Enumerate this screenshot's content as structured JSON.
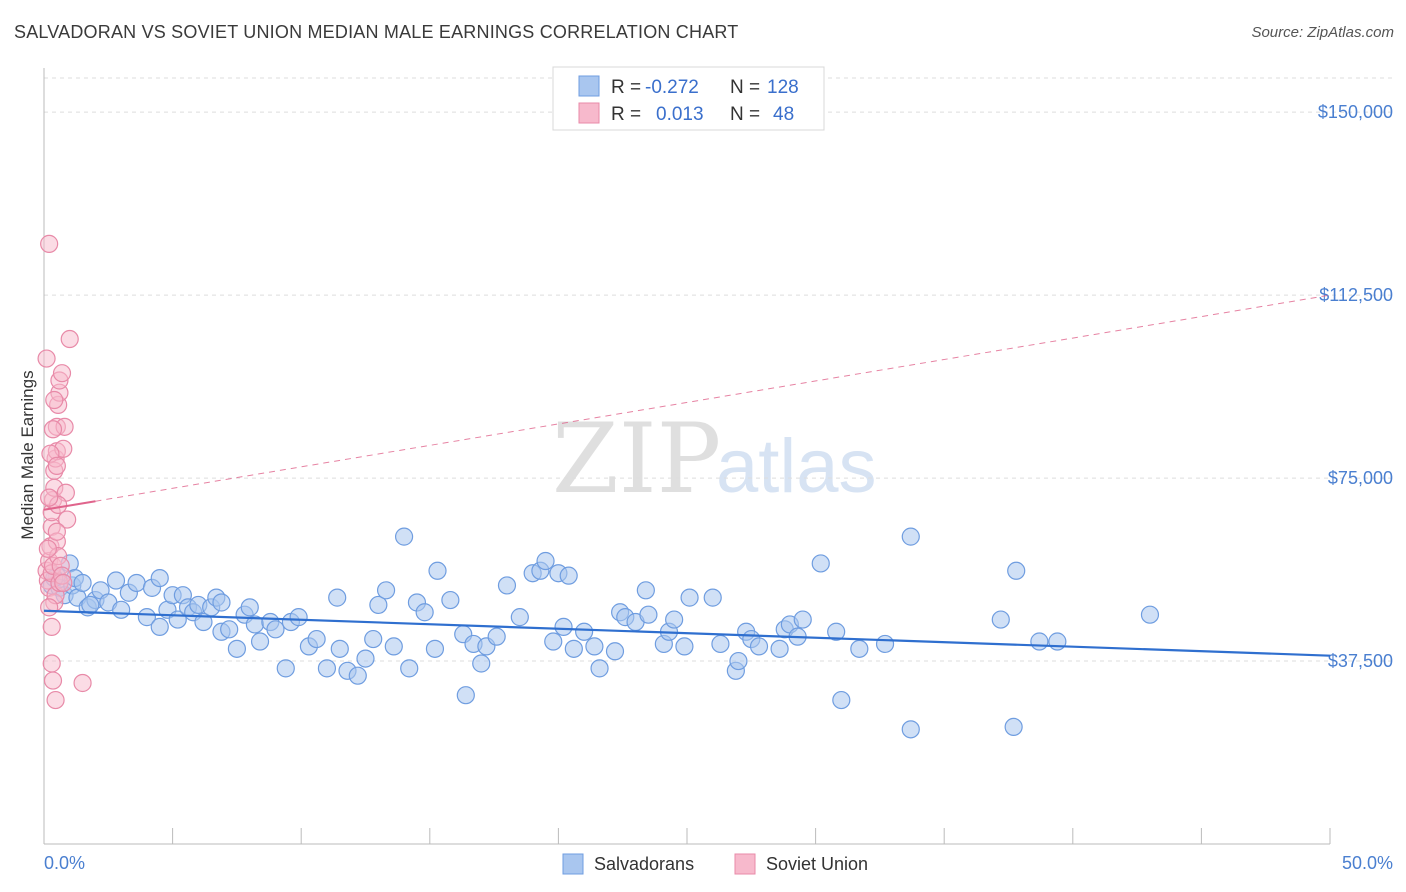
{
  "title": "SALVADORAN VS SOVIET UNION MEDIAN MALE EARNINGS CORRELATION CHART",
  "source": "Source: ZipAtlas.com",
  "watermark": {
    "part1": "ZIP",
    "part2": "atlas"
  },
  "colors": {
    "blue_fill": "#a9c6ef",
    "blue_stroke": "#6f9de0",
    "blue_line": "#2f6fcf",
    "pink_fill": "#f7b9cc",
    "pink_stroke": "#e88aa8",
    "pink_line": "#e0648c",
    "axis_text": "#4a7fd0",
    "grid": "#dddddd"
  },
  "legend": {
    "rows": [
      {
        "r_label": "R =",
        "r_value": "-0.272",
        "n_label": "N =",
        "n_value": "128"
      },
      {
        "r_label": "R =",
        "r_value": "0.013",
        "n_label": "N =",
        "n_value": "48"
      }
    ]
  },
  "bottom_legend": {
    "series1": "Salvadorans",
    "series2": "Soviet Union"
  },
  "chart_data": {
    "type": "scatter",
    "title": "SALVADORAN VS SOVIET UNION MEDIAN MALE EARNINGS CORRELATION CHART",
    "xlabel": "",
    "ylabel": "Median Male Earnings",
    "x_unit": "%",
    "xlim": [
      0,
      50
    ],
    "ylim": [
      0,
      157000
    ],
    "x_tick_labels": [
      "0.0%",
      "50.0%"
    ],
    "y_ticks": [
      37500,
      75000,
      112500,
      150000
    ],
    "y_tick_labels": [
      "$37,500",
      "$75,000",
      "$112,500",
      "$150,000"
    ],
    "grid": "horizontal dashed",
    "legend_position": "top-center",
    "series": [
      {
        "name": "Salvadorans",
        "r": -0.272,
        "n": 128,
        "trend": {
          "x": [
            0,
            50
          ],
          "y": [
            47800,
            38600
          ],
          "style": "solid"
        },
        "points": [
          [
            0.3,
            53000
          ],
          [
            0.5,
            55000
          ],
          [
            0.6,
            52500
          ],
          [
            0.8,
            51000
          ],
          [
            1.0,
            57500
          ],
          [
            1.1,
            53000
          ],
          [
            1.2,
            54500
          ],
          [
            1.3,
            50500
          ],
          [
            1.5,
            53500
          ],
          [
            1.7,
            48500
          ],
          [
            2.0,
            50000
          ],
          [
            2.2,
            52000
          ],
          [
            2.5,
            49500
          ],
          [
            2.8,
            54000
          ],
          [
            3.0,
            48000
          ],
          [
            3.3,
            51500
          ],
          [
            3.6,
            53500
          ],
          [
            4.0,
            46500
          ],
          [
            4.2,
            52500
          ],
          [
            4.5,
            54500
          ],
          [
            4.5,
            44500
          ],
          [
            4.8,
            48000
          ],
          [
            5.0,
            51000
          ],
          [
            5.2,
            46000
          ],
          [
            5.4,
            51000
          ],
          [
            5.6,
            48500
          ],
          [
            5.8,
            47500
          ],
          [
            6.0,
            49000
          ],
          [
            6.2,
            45500
          ],
          [
            6.5,
            48500
          ],
          [
            6.7,
            50500
          ],
          [
            6.9,
            43500
          ],
          [
            7.2,
            44000
          ],
          [
            7.5,
            40000
          ],
          [
            7.8,
            47000
          ],
          [
            8.0,
            48500
          ],
          [
            8.2,
            45000
          ],
          [
            8.4,
            41500
          ],
          [
            8.8,
            45500
          ],
          [
            9.0,
            44000
          ],
          [
            9.4,
            36000
          ],
          [
            9.6,
            45500
          ],
          [
            9.9,
            46500
          ],
          [
            10.3,
            40500
          ],
          [
            10.6,
            42000
          ],
          [
            11.0,
            36000
          ],
          [
            11.4,
            50500
          ],
          [
            11.5,
            40000
          ],
          [
            11.8,
            35500
          ],
          [
            12.2,
            34500
          ],
          [
            12.5,
            38000
          ],
          [
            12.8,
            42000
          ],
          [
            13.0,
            49000
          ],
          [
            13.3,
            52000
          ],
          [
            13.6,
            40500
          ],
          [
            14.0,
            63000
          ],
          [
            14.2,
            36000
          ],
          [
            14.5,
            49500
          ],
          [
            14.8,
            47500
          ],
          [
            15.2,
            40000
          ],
          [
            15.3,
            56000
          ],
          [
            15.8,
            50000
          ],
          [
            16.3,
            43000
          ],
          [
            16.4,
            30500
          ],
          [
            16.7,
            41000
          ],
          [
            17.0,
            37000
          ],
          [
            17.2,
            40500
          ],
          [
            17.6,
            42500
          ],
          [
            18.0,
            53000
          ],
          [
            18.5,
            46500
          ],
          [
            19.0,
            55500
          ],
          [
            19.3,
            56000
          ],
          [
            19.5,
            58000
          ],
          [
            19.8,
            41500
          ],
          [
            20.0,
            55500
          ],
          [
            20.2,
            44500
          ],
          [
            20.4,
            55000
          ],
          [
            20.6,
            40000
          ],
          [
            21.0,
            43500
          ],
          [
            21.4,
            40500
          ],
          [
            21.6,
            36000
          ],
          [
            22.2,
            39500
          ],
          [
            22.4,
            47500
          ],
          [
            22.6,
            46500
          ],
          [
            23.0,
            45500
          ],
          [
            23.4,
            52000
          ],
          [
            23.5,
            47000
          ],
          [
            24.1,
            41000
          ],
          [
            24.3,
            43500
          ],
          [
            24.5,
            46000
          ],
          [
            24.9,
            40500
          ],
          [
            25.1,
            50500
          ],
          [
            26.0,
            50500
          ],
          [
            26.3,
            41000
          ],
          [
            26.9,
            35500
          ],
          [
            27.0,
            37500
          ],
          [
            27.3,
            43500
          ],
          [
            27.5,
            42000
          ],
          [
            27.8,
            40500
          ],
          [
            28.6,
            40000
          ],
          [
            28.8,
            44000
          ],
          [
            29.0,
            45000
          ],
          [
            29.3,
            42500
          ],
          [
            29.5,
            46000
          ],
          [
            30.2,
            57500
          ],
          [
            30.8,
            43500
          ],
          [
            31.0,
            29500
          ],
          [
            31.7,
            40000
          ],
          [
            32.7,
            41000
          ],
          [
            33.7,
            63000
          ],
          [
            33.7,
            23500
          ],
          [
            37.2,
            46000
          ],
          [
            37.7,
            24000
          ],
          [
            37.8,
            56000
          ],
          [
            38.7,
            41500
          ],
          [
            39.4,
            41500
          ],
          [
            43.0,
            47000
          ],
          [
            0.4,
            54500
          ],
          [
            1.8,
            49000
          ],
          [
            6.9,
            49500
          ]
        ]
      },
      {
        "name": "Soviet Union",
        "r": 0.013,
        "n": 48,
        "trend": {
          "x": [
            0,
            50
          ],
          "y": [
            68500,
            112500
          ],
          "style": "solid then dashed",
          "solid_until_x": 2.0
        },
        "points": [
          [
            0.1,
            56000
          ],
          [
            0.15,
            54000
          ],
          [
            0.2,
            52500
          ],
          [
            0.2,
            58000
          ],
          [
            0.25,
            61000
          ],
          [
            0.3,
            65000
          ],
          [
            0.3,
            68000
          ],
          [
            0.35,
            70500
          ],
          [
            0.4,
            73000
          ],
          [
            0.4,
            76500
          ],
          [
            0.45,
            79000
          ],
          [
            0.5,
            80500
          ],
          [
            0.5,
            85500
          ],
          [
            0.55,
            90000
          ],
          [
            0.6,
            92500
          ],
          [
            0.6,
            95000
          ],
          [
            0.1,
            99500
          ],
          [
            0.7,
            96500
          ],
          [
            0.75,
            81000
          ],
          [
            0.8,
            85500
          ],
          [
            0.85,
            72000
          ],
          [
            0.9,
            66500
          ],
          [
            1.0,
            103500
          ],
          [
            0.2,
            123000
          ],
          [
            0.3,
            55500
          ],
          [
            0.35,
            57000
          ],
          [
            0.4,
            49500
          ],
          [
            0.45,
            51000
          ],
          [
            0.5,
            62000
          ],
          [
            0.55,
            59000
          ],
          [
            0.6,
            53500
          ],
          [
            0.3,
            37000
          ],
          [
            0.35,
            33500
          ],
          [
            0.45,
            29500
          ],
          [
            1.5,
            33000
          ],
          [
            0.3,
            44500
          ],
          [
            0.2,
            48500
          ],
          [
            0.5,
            64000
          ],
          [
            0.65,
            57000
          ],
          [
            0.25,
            80000
          ],
          [
            0.35,
            85000
          ],
          [
            0.4,
            91000
          ],
          [
            0.5,
            77500
          ],
          [
            0.55,
            69500
          ],
          [
            0.7,
            55000
          ],
          [
            0.75,
            53500
          ],
          [
            0.15,
            60500
          ],
          [
            0.2,
            71000
          ]
        ]
      }
    ]
  }
}
